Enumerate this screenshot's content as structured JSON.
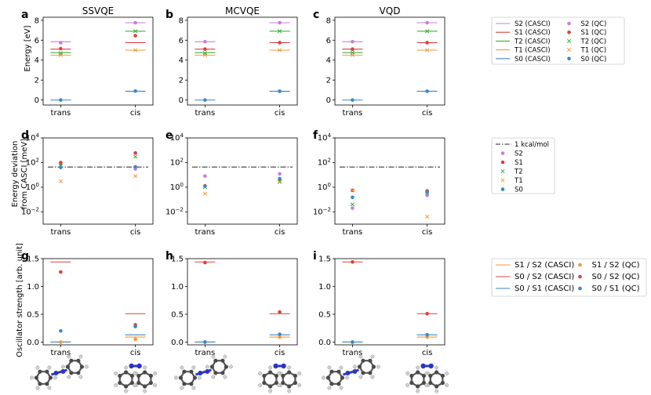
{
  "figure": {
    "colors": {
      "S2": "#c77fd6",
      "S1": "#d94040",
      "T2": "#3fae3f",
      "T1": "#f39a3c",
      "S0": "#3a87c8",
      "S1S2": "#f39a3c",
      "S0S2": "#d94040",
      "S0S1": "#3a87c8"
    },
    "row_ylabels": [
      "Energy [eV]",
      "Energy deviation",
      "from CASCI [meV]",
      "Oscillator strength [arb. unit]"
    ],
    "column_titles": [
      "SSVQE",
      "MCVQE",
      "VQD"
    ],
    "panel_letters": [
      "a",
      "b",
      "c",
      "d",
      "e",
      "f",
      "g",
      "h",
      "i"
    ],
    "x_categories": [
      "trans",
      "cis"
    ],
    "legend_energy": {
      "items": [
        {
          "label": "S2 (CASCI)",
          "key": "S2",
          "kind": "line"
        },
        {
          "label": "S1 (CASCI)",
          "key": "S1",
          "kind": "line"
        },
        {
          "label": "T2 (CASCI)",
          "key": "T2",
          "kind": "line"
        },
        {
          "label": "T1 (CASCI)",
          "key": "T1",
          "kind": "line"
        },
        {
          "label": "S0 (CASCI)",
          "key": "S0",
          "kind": "line"
        },
        {
          "label": "S2 (QC)",
          "key": "S2",
          "kind": "dot"
        },
        {
          "label": "S1 (QC)",
          "key": "S1",
          "kind": "dot"
        },
        {
          "label": "T2 (QC)",
          "key": "T2",
          "kind": "x"
        },
        {
          "label": "T1 (QC)",
          "key": "T1",
          "kind": "x"
        },
        {
          "label": "S0 (QC)",
          "key": "S0",
          "kind": "dot"
        }
      ]
    },
    "legend_deviation": {
      "items": [
        {
          "label": "1 kcal/mol",
          "key": "ref",
          "kind": "dashdot"
        },
        {
          "label": "S2",
          "key": "S2",
          "kind": "dot"
        },
        {
          "label": "S1",
          "key": "S1",
          "kind": "dot"
        },
        {
          "label": "T2",
          "key": "T2",
          "kind": "x"
        },
        {
          "label": "T1",
          "key": "T1",
          "kind": "x"
        },
        {
          "label": "S0",
          "key": "S0",
          "kind": "dot"
        }
      ]
    },
    "legend_oscillator": {
      "items": [
        {
          "label": "S1 / S2 (CASCI)",
          "key": "S1S2",
          "kind": "line"
        },
        {
          "label": "S0 / S2 (CASCI)",
          "key": "S0S2",
          "kind": "line"
        },
        {
          "label": "S0 / S1 (CASCI)",
          "key": "S0S1",
          "kind": "line"
        },
        {
          "label": "S1 / S2 (QC)",
          "key": "S1S2",
          "kind": "dot"
        },
        {
          "label": "S0 / S2 (QC)",
          "key": "S0S2",
          "kind": "dot"
        },
        {
          "label": "S0 / S1 (QC)",
          "key": "S0S1",
          "kind": "dot"
        }
      ]
    }
  },
  "chart_data": [
    {
      "type": "scatter",
      "panel": "a",
      "title": "SSVQE",
      "ylabel": "Energy [eV]",
      "categories": [
        "trans",
        "cis"
      ],
      "ylim": [
        -0.5,
        8.3
      ],
      "yticks": [
        0,
        2,
        4,
        6,
        8
      ],
      "casci": {
        "S2": [
          5.85,
          7.75
        ],
        "S1": [
          5.1,
          5.75
        ],
        "T2": [
          4.75,
          6.9
        ],
        "T1": [
          4.5,
          5.0
        ],
        "S0": [
          0.0,
          0.88
        ]
      },
      "qc": {
        "S2": [
          5.75,
          7.75
        ],
        "S1": [
          5.15,
          6.45
        ],
        "T2": [
          4.7,
          6.9
        ],
        "T1": [
          4.5,
          5.0
        ],
        "S0": [
          0.0,
          0.9
        ]
      }
    },
    {
      "type": "scatter",
      "panel": "b",
      "title": "MCVQE",
      "ylabel": "",
      "categories": [
        "trans",
        "cis"
      ],
      "ylim": [
        -0.5,
        8.3
      ],
      "yticks": [
        0,
        2,
        4,
        6,
        8
      ],
      "casci": {
        "S2": [
          5.85,
          7.75
        ],
        "S1": [
          5.1,
          5.75
        ],
        "T2": [
          4.75,
          6.9
        ],
        "T1": [
          4.5,
          5.0
        ],
        "S0": [
          0.0,
          0.88
        ]
      },
      "qc": {
        "S2": [
          5.85,
          7.75
        ],
        "S1": [
          5.1,
          5.75
        ],
        "T2": [
          4.7,
          6.9
        ],
        "T1": [
          4.5,
          5.0
        ],
        "S0": [
          0.0,
          0.88
        ]
      }
    },
    {
      "type": "scatter",
      "panel": "c",
      "title": "VQD",
      "ylabel": "",
      "categories": [
        "trans",
        "cis"
      ],
      "ylim": [
        -0.5,
        8.3
      ],
      "yticks": [
        0,
        2,
        4,
        6,
        8
      ],
      "casci": {
        "S2": [
          5.85,
          7.75
        ],
        "S1": [
          5.1,
          5.75
        ],
        "T2": [
          4.75,
          6.9
        ],
        "T1": [
          4.5,
          5.0
        ],
        "S0": [
          0.0,
          0.88
        ]
      },
      "qc": {
        "S2": [
          5.85,
          7.75
        ],
        "S1": [
          5.1,
          5.75
        ],
        "T2": [
          4.75,
          6.9
        ],
        "T1": [
          4.5,
          5.0
        ],
        "S0": [
          0.0,
          0.88
        ]
      }
    },
    {
      "type": "scatter",
      "panel": "d",
      "yscale": "log",
      "ylabel": "Energy deviation from CASCI [meV]",
      "categories": [
        "trans",
        "cis"
      ],
      "ylim_exp": [
        -3,
        4
      ],
      "yticks_exp": [
        -2,
        0,
        2,
        4
      ],
      "reference": 43.4,
      "qc": {
        "S2": [
          70,
          30
        ],
        "S1": [
          100,
          600
        ],
        "T2": [
          60,
          300
        ],
        "T1": [
          3,
          8
        ],
        "S0": [
          40,
          45
        ]
      }
    },
    {
      "type": "scatter",
      "panel": "e",
      "yscale": "log",
      "ylabel": "",
      "categories": [
        "trans",
        "cis"
      ],
      "ylim_exp": [
        -3,
        4
      ],
      "yticks_exp": [
        -2,
        0,
        2,
        4
      ],
      "reference": 43.4,
      "qc": {
        "S2": [
          8,
          12
        ],
        "S1": [
          1.3,
          4
        ],
        "T2": [
          1.0,
          3
        ],
        "T1": [
          0.3,
          2.5
        ],
        "S0": [
          1.2,
          5
        ]
      }
    },
    {
      "type": "scatter",
      "panel": "f",
      "yscale": "log",
      "ylabel": "",
      "categories": [
        "trans",
        "cis"
      ],
      "ylim_exp": [
        -3,
        4
      ],
      "yticks_exp": [
        -2,
        0,
        2,
        4
      ],
      "reference": 43.4,
      "qc": {
        "S2": [
          0.02,
          0.22
        ],
        "S1": [
          0.55,
          0.5
        ],
        "T2": [
          0.04,
          0.35
        ],
        "T1": [
          0.55,
          0.004
        ],
        "S0": [
          0.15,
          0.4
        ]
      }
    },
    {
      "type": "scatter",
      "panel": "g",
      "ylabel": "Oscillator strength [arb. unit]",
      "categories": [
        "trans",
        "cis"
      ],
      "ylim": [
        -0.05,
        1.5
      ],
      "yticks": [
        0.0,
        0.5,
        1.0,
        1.5
      ],
      "casci": {
        "S0S2": [
          1.44,
          0.51
        ],
        "S1S2": [
          0.0,
          0.09
        ],
        "S0S1": [
          0.0,
          0.13
        ]
      },
      "qc": {
        "S0S2": [
          1.26,
          0.31
        ],
        "S1S2": [
          0.0,
          0.05
        ],
        "S0S1": [
          0.2,
          0.28
        ]
      }
    },
    {
      "type": "scatter",
      "panel": "h",
      "ylabel": "",
      "categories": [
        "trans",
        "cis"
      ],
      "ylim": [
        -0.05,
        1.5
      ],
      "yticks": [
        0.0,
        0.5,
        1.0,
        1.5
      ],
      "casci": {
        "S0S2": [
          1.44,
          0.51
        ],
        "S1S2": [
          0.0,
          0.09
        ],
        "S0S1": [
          0.0,
          0.13
        ]
      },
      "qc": {
        "S0S2": [
          1.43,
          0.54
        ],
        "S1S2": [
          0.0,
          0.09
        ],
        "S0S1": [
          0.0,
          0.14
        ]
      }
    },
    {
      "type": "scatter",
      "panel": "i",
      "ylabel": "",
      "categories": [
        "trans",
        "cis"
      ],
      "ylim": [
        -0.05,
        1.5
      ],
      "yticks": [
        0.0,
        0.5,
        1.0,
        1.5
      ],
      "casci": {
        "S0S2": [
          1.44,
          0.51
        ],
        "S1S2": [
          0.0,
          0.09
        ],
        "S0S1": [
          0.0,
          0.13
        ]
      },
      "qc": {
        "S0S2": [
          1.44,
          0.51
        ],
        "S1S2": [
          0.0,
          0.09
        ],
        "S0S1": [
          0.0,
          0.13
        ]
      }
    }
  ]
}
